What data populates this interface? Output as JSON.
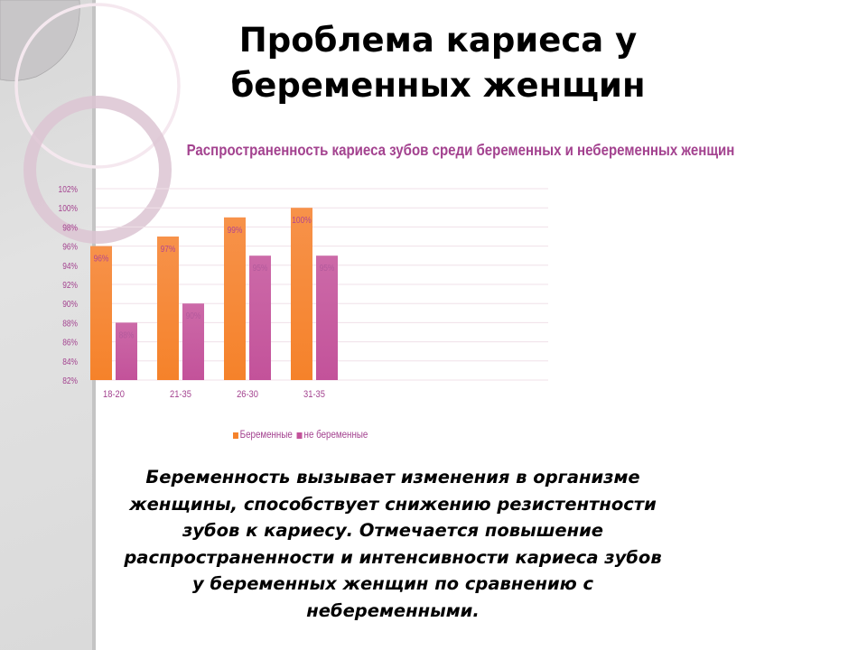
{
  "slide": {
    "title": "Проблема кариеса  у беременных женщин",
    "body": "Беременность вызывает изменения в организме\nженщины, способствует снижению резистентности\nзубов к кариесу. Отмечается повышение\nраспространенности и интенсивности кариеса зубов\nу беременных женщин по сравнению с\nнебеременными."
  },
  "colors": {
    "pregnant": "#f5822a",
    "non_pregnant": "#c3529a",
    "chart_text": "#a3428f",
    "gridline": "#f0e0e8"
  },
  "chart_data": {
    "type": "bar",
    "title": "Распространенность кариеса зубов среди беременных и небеременных женщин",
    "categories": [
      "18-20",
      "21-35",
      "26-30",
      "31-35"
    ],
    "series": [
      {
        "name": "Беременные",
        "values": [
          96,
          97,
          99,
          100
        ],
        "labels": [
          "96%",
          "97%",
          "99%",
          "100%"
        ]
      },
      {
        "name": "не беременные",
        "values": [
          88,
          90,
          95,
          95
        ],
        "labels": [
          "88%",
          "90%",
          "95%",
          "95%"
        ]
      }
    ],
    "xlabel": "",
    "ylabel": "",
    "ylim": [
      82,
      102
    ],
    "yticks": [
      "82%",
      "84%",
      "86%",
      "88%",
      "90%",
      "92%",
      "94%",
      "96%",
      "98%",
      "100%",
      "102%"
    ],
    "grid": true,
    "legend_position": "bottom"
  }
}
